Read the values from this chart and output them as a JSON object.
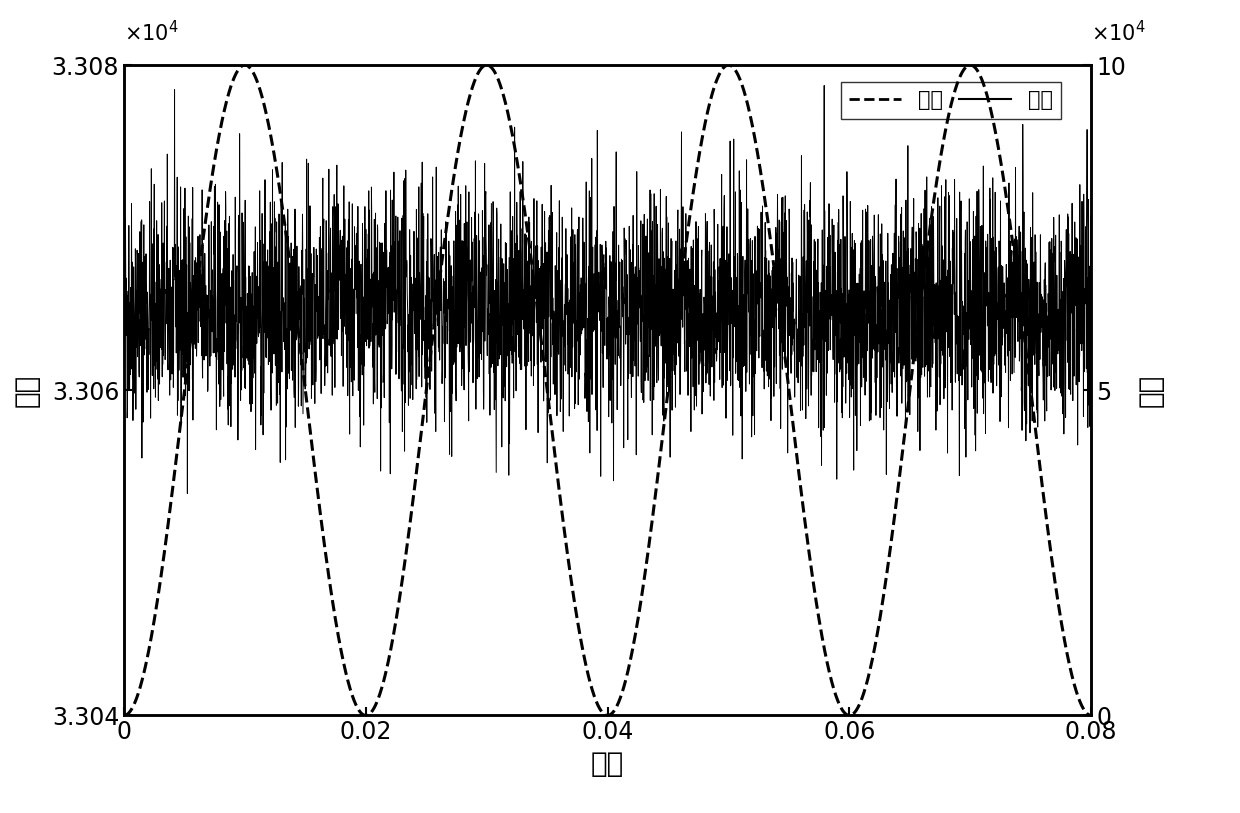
{
  "xlim": [
    0,
    0.08
  ],
  "current_ylim": [
    33040,
    33080
  ],
  "voltage_ylim": [
    0,
    100000
  ],
  "current_yticks": [
    33040,
    33060,
    33080
  ],
  "current_ytick_labels": [
    "3.304",
    "3.306",
    "3.308"
  ],
  "voltage_yticks": [
    0,
    50000,
    100000
  ],
  "voltage_ytick_labels": [
    "0",
    "5",
    "10"
  ],
  "xticks": [
    0,
    0.02,
    0.04,
    0.06,
    0.08
  ],
  "xtick_labels": [
    "0",
    "0.02",
    "0.04",
    "0.06",
    "0.08"
  ],
  "xlabel": "时间",
  "ylabel_left": "电流",
  "ylabel_right": "电压",
  "legend_voltage": "电压",
  "legend_current": "电流",
  "current_mean": 33065,
  "current_noise_std": 3.5,
  "voltage_amplitude": 100000,
  "freq": 50,
  "n_points": 4000,
  "background_color": "#ffffff",
  "line_color": "#000000"
}
